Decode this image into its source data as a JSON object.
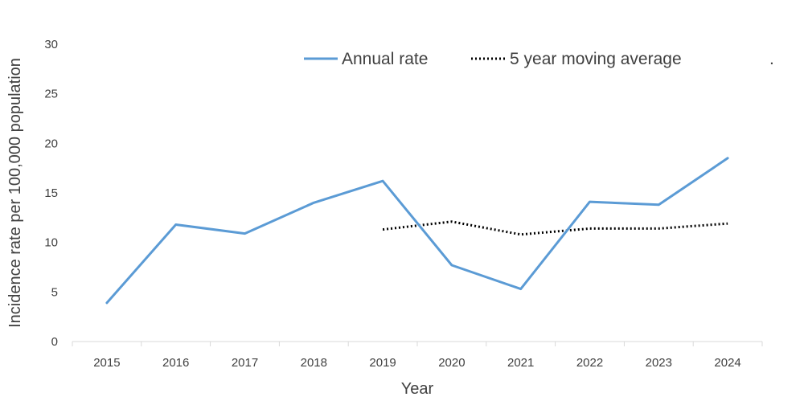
{
  "chart_data": {
    "type": "line",
    "title": "",
    "xlabel": "Year",
    "ylabel": "Incidence rate per 100,000 population",
    "x": [
      "2015",
      "2016",
      "2017",
      "2018",
      "2019",
      "2020",
      "2021",
      "2022",
      "2023",
      "2024"
    ],
    "ylim": [
      0,
      30
    ],
    "yticks": [
      0,
      5,
      10,
      15,
      20,
      25,
      30
    ],
    "grid": false,
    "legend": "top",
    "series": [
      {
        "name": "Annual rate",
        "style": "solid",
        "color": "#5b9bd5",
        "values": [
          3.9,
          11.8,
          10.9,
          14.0,
          16.2,
          7.7,
          5.3,
          14.1,
          13.8,
          18.5
        ]
      },
      {
        "name": "5 year moving average",
        "style": "dotted",
        "color": "#000000",
        "values": [
          null,
          null,
          null,
          null,
          11.3,
          12.1,
          10.8,
          11.4,
          11.4,
          11.9
        ]
      }
    ],
    "legend_trailing_mark": "."
  }
}
